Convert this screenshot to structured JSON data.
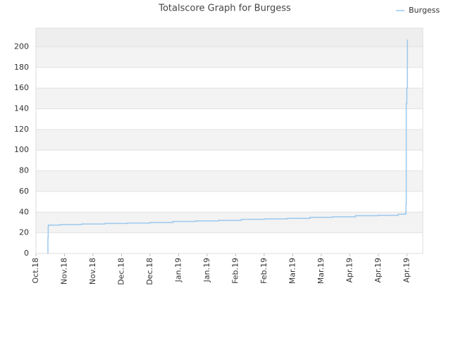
{
  "chart_data": {
    "type": "line",
    "title": "Totalscore Graph for Burgess",
    "step": "post",
    "xlim": [
      0,
      13.56
    ],
    "xticks": [
      {
        "value": 0,
        "label": "Oct.18"
      },
      {
        "value": 1,
        "label": "Nov.18"
      },
      {
        "value": 2,
        "label": "Nov.18"
      },
      {
        "value": 3,
        "label": "Dec.18"
      },
      {
        "value": 4,
        "label": "Dec.18"
      },
      {
        "value": 5,
        "label": "Jan.19"
      },
      {
        "value": 6,
        "label": "Jan.19"
      },
      {
        "value": 7,
        "label": "Feb.19"
      },
      {
        "value": 8,
        "label": "Feb.19"
      },
      {
        "value": 9,
        "label": "Mar.19"
      },
      {
        "value": 10,
        "label": "Mar.19"
      },
      {
        "value": 11,
        "label": "Apr.19"
      },
      {
        "value": 12,
        "label": "Apr.19"
      },
      {
        "value": 13,
        "label": "Apr.19"
      }
    ],
    "ylim": [
      0,
      218
    ],
    "yticks": [
      0,
      20,
      40,
      60,
      80,
      100,
      120,
      140,
      160,
      180,
      200
    ],
    "grid": true,
    "legend": "top-right",
    "x": [
      0.42,
      0.42,
      0.43,
      0.45,
      0.85,
      1.6,
      2.4,
      3.2,
      4.0,
      4.8,
      5.6,
      6.4,
      7.2,
      8.0,
      8.8,
      9.6,
      10.4,
      11.2,
      12.0,
      12.7,
      12.95,
      12.97,
      12.98,
      13.0,
      13.02
    ],
    "series": [
      {
        "name": "Burgess",
        "color": "#9cc8ee",
        "values": [
          0,
          15,
          27,
          27.5,
          28,
          28.5,
          29,
          29.5,
          30,
          31,
          31.5,
          32,
          33,
          33.5,
          34,
          35,
          35.5,
          36.5,
          37,
          38,
          38.5,
          48,
          145,
          160,
          207
        ]
      }
    ]
  }
}
